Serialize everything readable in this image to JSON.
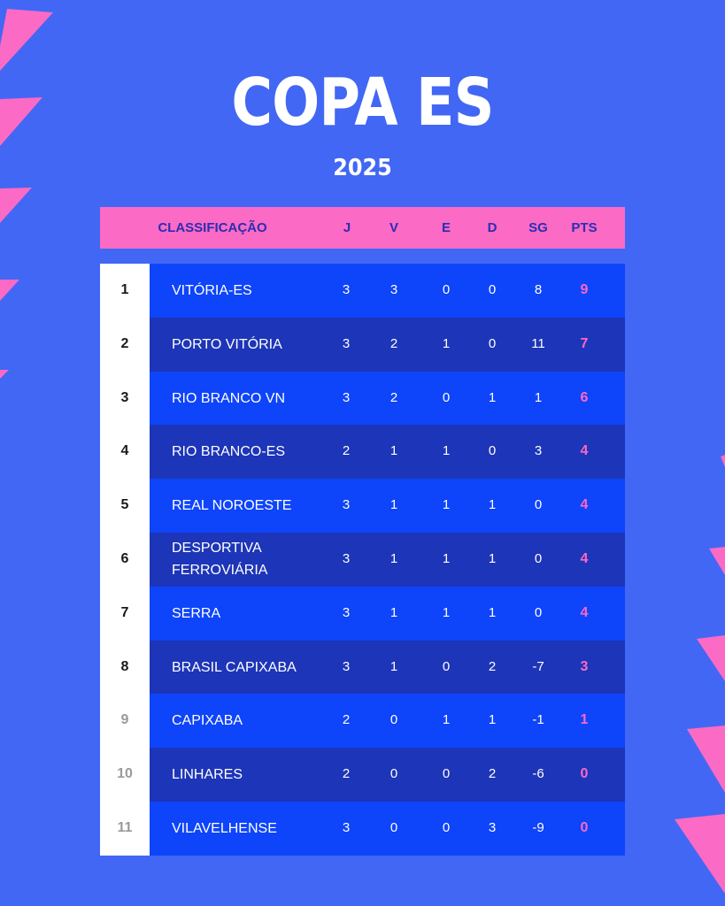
{
  "title": "COPA ES",
  "year": "2025",
  "colors": {
    "background": "#4267F4",
    "header": "#FB6AC4",
    "row_light": "#0E44FA",
    "row_dark": "#1D35B8",
    "points": "#FB6AC4"
  },
  "header": {
    "classification": "CLASSIFICAÇÃO",
    "j": "J",
    "v": "V",
    "e": "E",
    "d": "D",
    "sg": "SG",
    "pts": "PTS"
  },
  "rows": [
    {
      "rank": "1",
      "team": "VITÓRIA-ES",
      "j": "3",
      "v": "3",
      "e": "0",
      "d": "0",
      "sg": "8",
      "pts": "9"
    },
    {
      "rank": "2",
      "team": "PORTO VITÓRIA",
      "j": "3",
      "v": "2",
      "e": "1",
      "d": "0",
      "sg": "11",
      "pts": "7"
    },
    {
      "rank": "3",
      "team": "RIO BRANCO VN",
      "j": "3",
      "v": "2",
      "e": "0",
      "d": "1",
      "sg": "1",
      "pts": "6"
    },
    {
      "rank": "4",
      "team": "RIO BRANCO-ES",
      "j": "2",
      "v": "1",
      "e": "1",
      "d": "0",
      "sg": "3",
      "pts": "4"
    },
    {
      "rank": "5",
      "team": "REAL NOROESTE",
      "j": "3",
      "v": "1",
      "e": "1",
      "d": "1",
      "sg": "0",
      "pts": "4"
    },
    {
      "rank": "6",
      "team": "DESPORTIVA FERROVIÁRIA",
      "j": "3",
      "v": "1",
      "e": "1",
      "d": "1",
      "sg": "0",
      "pts": "4"
    },
    {
      "rank": "7",
      "team": "SERRA",
      "j": "3",
      "v": "1",
      "e": "1",
      "d": "1",
      "sg": "0",
      "pts": "4"
    },
    {
      "rank": "8",
      "team": "BRASIL CAPIXABA",
      "j": "3",
      "v": "1",
      "e": "0",
      "d": "2",
      "sg": "-7",
      "pts": "3"
    },
    {
      "rank": "9",
      "team": "CAPIXABA",
      "j": "2",
      "v": "0",
      "e": "1",
      "d": "1",
      "sg": "-1",
      "pts": "1"
    },
    {
      "rank": "10",
      "team": "LINHARES",
      "j": "2",
      "v": "0",
      "e": "0",
      "d": "2",
      "sg": "-6",
      "pts": "0"
    },
    {
      "rank": "11",
      "team": "VILAVELHENSE",
      "j": "3",
      "v": "0",
      "e": "0",
      "d": "3",
      "sg": "-9",
      "pts": "0"
    }
  ]
}
